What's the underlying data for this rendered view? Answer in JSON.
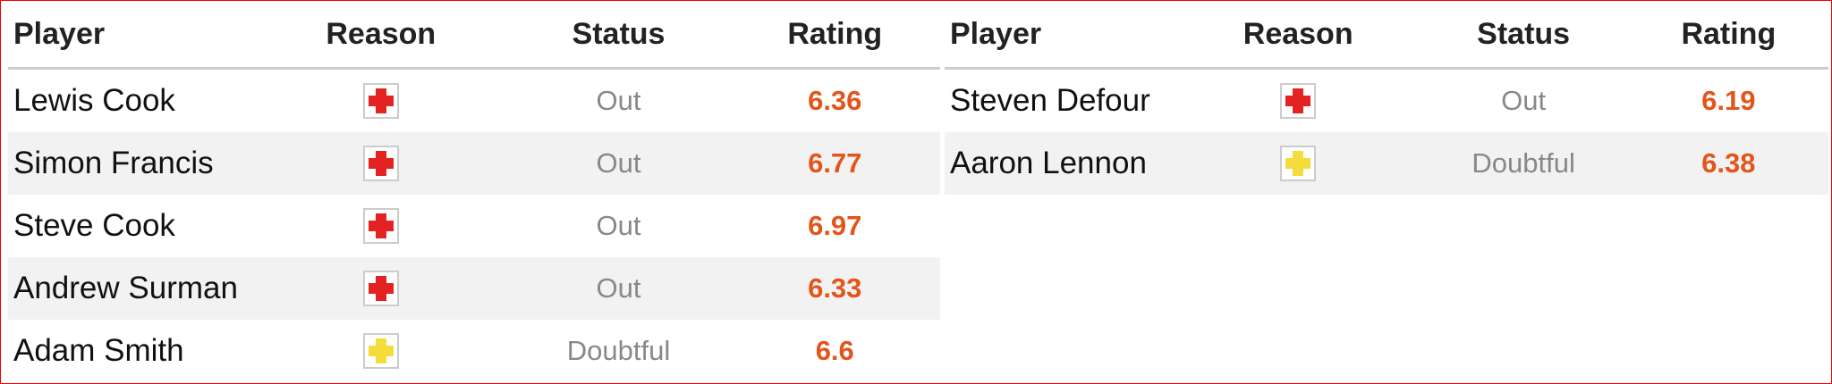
{
  "tables": [
    {
      "headers": [
        "Player",
        "Reason",
        "Status",
        "Rating"
      ],
      "rows": [
        {
          "player": "Lewis Cook",
          "icon_color": "#e52222",
          "status": "Out",
          "rating": 6.36
        },
        {
          "player": "Simon Francis",
          "icon_color": "#e52222",
          "status": "Out",
          "rating": 6.77
        },
        {
          "player": "Steve Cook",
          "icon_color": "#e52222",
          "status": "Out",
          "rating": 6.97
        },
        {
          "player": "Andrew Surman",
          "icon_color": "#e52222",
          "status": "Out",
          "rating": 6.33
        },
        {
          "player": "Adam Smith",
          "icon_color": "#f3dc3c",
          "status": "Doubtful",
          "rating": 6.6
        }
      ]
    },
    {
      "headers": [
        "Player",
        "Reason",
        "Status",
        "Rating"
      ],
      "rows": [
        {
          "player": "Steven Defour",
          "icon_color": "#e52222",
          "status": "Out",
          "rating": 6.19
        },
        {
          "player": "Aaron Lennon",
          "icon_color": "#f3dc3c",
          "status": "Doubtful",
          "rating": 6.38
        }
      ]
    }
  ]
}
